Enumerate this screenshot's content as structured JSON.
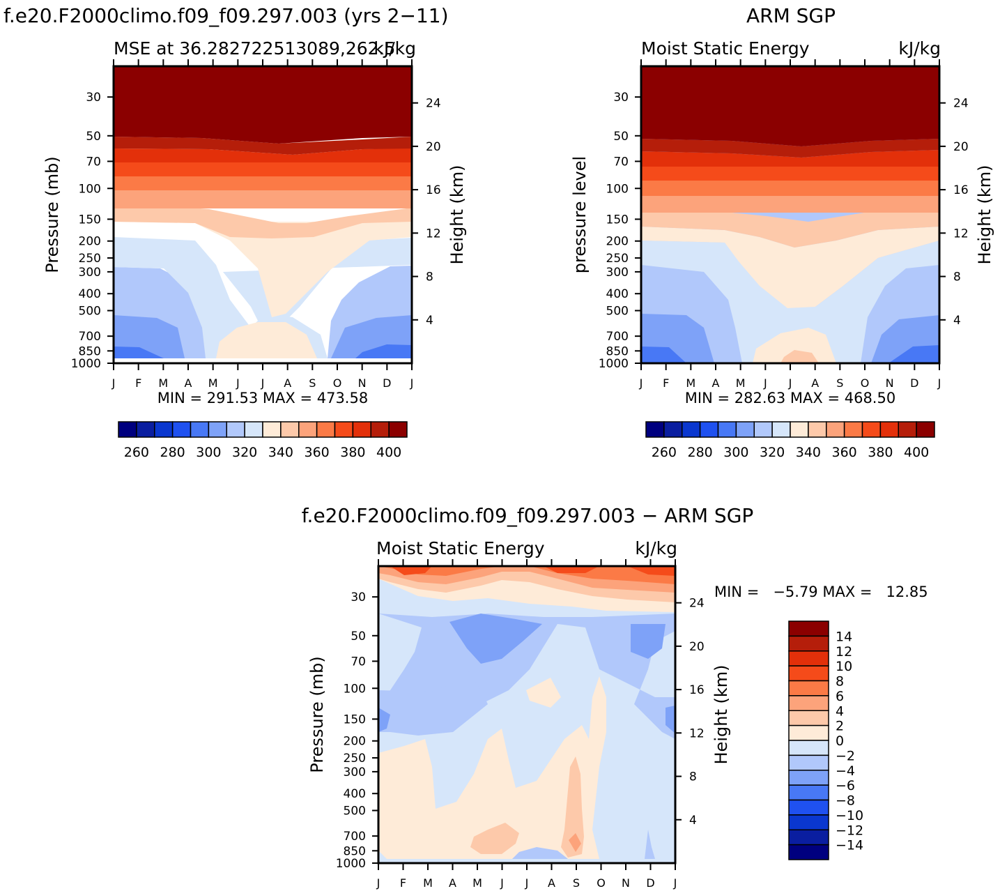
{
  "figure": {
    "title_left": "f.e20.F2000climo.f09_f09.297.003 (yrs 2−11)",
    "title_right": "ARM SGP",
    "title_diff": "f.e20.F2000climo.f09_f09.297.003 − ARM SGP"
  },
  "chart_data": [
    {
      "type": "heatmap",
      "panel": "model",
      "subtitle_left": "MSE at 36.282722513089,262.5",
      "subtitle_right": "kJ/kg",
      "ylabel": "Pressure (mb)",
      "ylabel_right": "Height (km)",
      "x": [
        "J",
        "F",
        "M",
        "A",
        "M",
        "J",
        "J",
        "A",
        "S",
        "O",
        "N",
        "D",
        "J"
      ],
      "y_ticks": [
        "30",
        "50",
        "70",
        "100",
        "150",
        "200",
        "250",
        "300",
        "400",
        "500",
        "700",
        "850",
        "1000"
      ],
      "y_right_ticks": [
        "24",
        "20",
        "16",
        "12",
        "8",
        "4"
      ],
      "min_text": "MIN = 291.53 MAX = 473.58",
      "levels": [
        260,
        270,
        280,
        290,
        300,
        310,
        320,
        330,
        340,
        350,
        360,
        370,
        380,
        390,
        400
      ],
      "colorbar_labels": [
        "260",
        "280",
        "300",
        "320",
        "340",
        "360",
        "380",
        "400"
      ]
    },
    {
      "type": "heatmap",
      "panel": "observations",
      "subtitle_left": "Moist Static Energy",
      "subtitle_right": "kJ/kg",
      "ylabel": "pressure level",
      "ylabel_right": "Height (km)",
      "x": [
        "J",
        "F",
        "M",
        "A",
        "M",
        "J",
        "J",
        "A",
        "S",
        "O",
        "N",
        "D",
        "J"
      ],
      "y_ticks": [
        "30",
        "50",
        "70",
        "100",
        "150",
        "200",
        "250",
        "300",
        "400",
        "500",
        "700",
        "850",
        "1000"
      ],
      "y_right_ticks": [
        "24",
        "20",
        "16",
        "12",
        "8",
        "4"
      ],
      "min_text": "MIN = 282.63 MAX = 468.50",
      "levels": [
        260,
        270,
        280,
        290,
        300,
        310,
        320,
        330,
        340,
        350,
        360,
        370,
        380,
        390,
        400
      ],
      "colorbar_labels": [
        "260",
        "280",
        "300",
        "320",
        "340",
        "360",
        "380",
        "400"
      ]
    },
    {
      "type": "heatmap",
      "panel": "difference",
      "subtitle_left": "Moist Static Energy",
      "subtitle_right": "kJ/kg",
      "ylabel": "Pressure (mb)",
      "ylabel_right": "Height (km)",
      "x": [
        "J",
        "F",
        "M",
        "A",
        "M",
        "J",
        "J",
        "A",
        "S",
        "O",
        "N",
        "D",
        "J"
      ],
      "y_ticks": [
        "30",
        "50",
        "70",
        "100",
        "150",
        "200",
        "250",
        "300",
        "400",
        "500",
        "700",
        "850",
        "1000"
      ],
      "y_right_ticks": [
        "24",
        "20",
        "16",
        "12",
        "8",
        "4"
      ],
      "min_text": "MIN =   −5.79 MAX =   12.85",
      "levels": [
        -14,
        -12,
        -10,
        -8,
        -6,
        -4,
        -2,
        0,
        2,
        4,
        6,
        8,
        10,
        12,
        14
      ],
      "colorbar_labels": [
        "14",
        "12",
        "10",
        "8",
        "6",
        "4",
        "2",
        "0",
        "−2",
        "−4",
        "−6",
        "−8",
        "−10",
        "−12",
        "−14"
      ]
    }
  ],
  "palette": [
    "#00007f",
    "#0a1ea0",
    "#0a37cf",
    "#1f51f0",
    "#4878f5",
    "#7ea2f8",
    "#b1c8fb",
    "#d6e6fa",
    "#feebd8",
    "#fdc9aa",
    "#fca37b",
    "#fb7a46",
    "#f54b1a",
    "#e3300a",
    "#b51e0a",
    "#8b0000"
  ]
}
